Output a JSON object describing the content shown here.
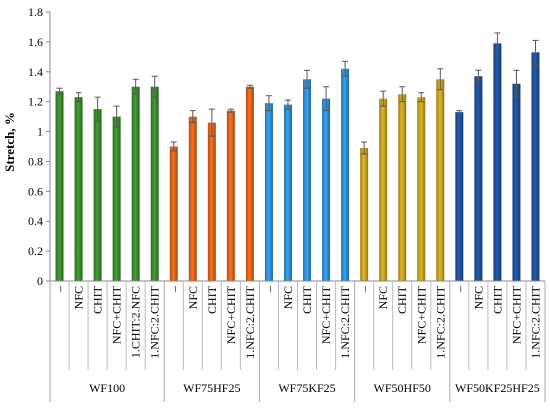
{
  "chart_data": {
    "type": "bar",
    "ylabel": "Stretch, %",
    "xlabel": "",
    "ylim": [
      0,
      1.8
    ],
    "yticks": [
      "0",
      "0.2",
      "0.4",
      "0.6",
      "0.8",
      "1",
      "1.2",
      "1.4",
      "1.6",
      "1.8"
    ],
    "grid": false,
    "groups": [
      {
        "name": "WF100",
        "color": "#3a8a2e",
        "categories": [
          "–",
          "NFC",
          "CHIT",
          "NFC+CHIT",
          "1.CHIT:2.NFC",
          "1.NFC:2.CHIT"
        ],
        "values": [
          1.27,
          1.23,
          1.15,
          1.1,
          1.3,
          1.3
        ],
        "errors": [
          0.02,
          0.03,
          0.08,
          0.07,
          0.05,
          0.07
        ]
      },
      {
        "name": "WF75HF25",
        "color": "#e0641c",
        "categories": [
          "–",
          "NFC",
          "CHIT",
          "NFC+CHIT",
          "1.NFC:2.CHIT"
        ],
        "values": [
          0.9,
          1.1,
          1.06,
          1.14,
          1.3
        ],
        "errors": [
          0.03,
          0.04,
          0.09,
          0.01,
          0.01
        ]
      },
      {
        "name": "WF75KF25",
        "color": "#2e8fd6",
        "categories": [
          "–",
          "NFC",
          "CHIT",
          "NFC+CHIT",
          "1.NFC:2.CHIT"
        ],
        "values": [
          1.19,
          1.18,
          1.35,
          1.22,
          1.42
        ],
        "errors": [
          0.05,
          0.03,
          0.06,
          0.08,
          0.05
        ]
      },
      {
        "name": "WF50HF50",
        "color": "#c6a11e",
        "categories": [
          "–",
          "NFC",
          "CHIT",
          "NFC+CHIT",
          "1.NFC:2.CHIT"
        ],
        "values": [
          0.89,
          1.22,
          1.25,
          1.23,
          1.35
        ],
        "errors": [
          0.04,
          0.05,
          0.05,
          0.03,
          0.07
        ]
      },
      {
        "name": "WF50KF25HF25",
        "color": "#1f4f98",
        "categories": [
          "–",
          "NFC",
          "CHIT",
          "NFC+CHIT",
          "1.NFC:2.CHIT"
        ],
        "values": [
          1.13,
          1.37,
          1.59,
          1.32,
          1.53
        ],
        "errors": [
          0.01,
          0.04,
          0.07,
          0.09,
          0.08
        ]
      }
    ]
  }
}
